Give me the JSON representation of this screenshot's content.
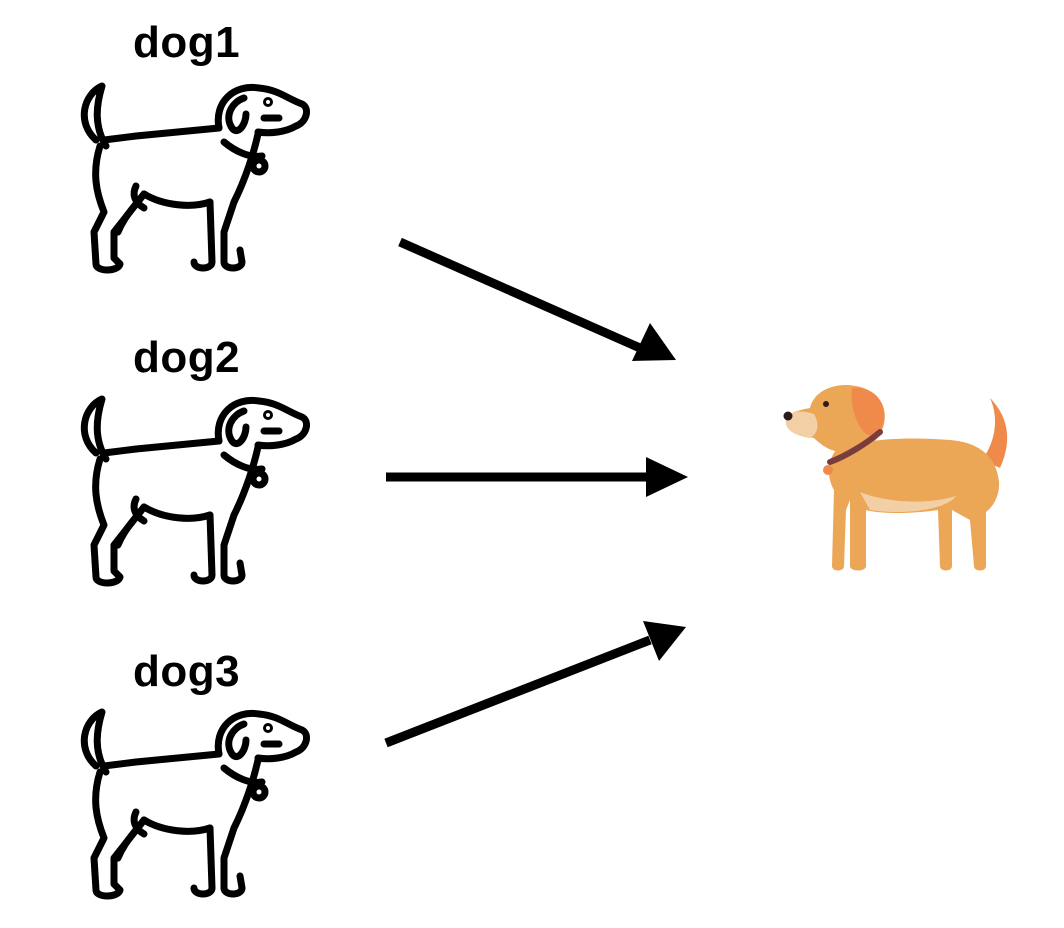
{
  "diagram": {
    "sources": [
      {
        "label": "dog1",
        "icon": "dog-outline-icon"
      },
      {
        "label": "dog2",
        "icon": "dog-outline-icon"
      },
      {
        "label": "dog3",
        "icon": "dog-outline-icon"
      }
    ],
    "target": {
      "icon": "dog-color-icon"
    },
    "arrows": [
      {
        "from": "dog1",
        "to": "target"
      },
      {
        "from": "dog2",
        "to": "target"
      },
      {
        "from": "dog3",
        "to": "target"
      }
    ],
    "colors": {
      "outline": "#000000",
      "dog_body": "#EBA656",
      "dog_ear": "#F08A4B",
      "dog_belly": "#F3CFA5",
      "collar": "#7A3D3D",
      "tag": "#F08A4B"
    }
  }
}
